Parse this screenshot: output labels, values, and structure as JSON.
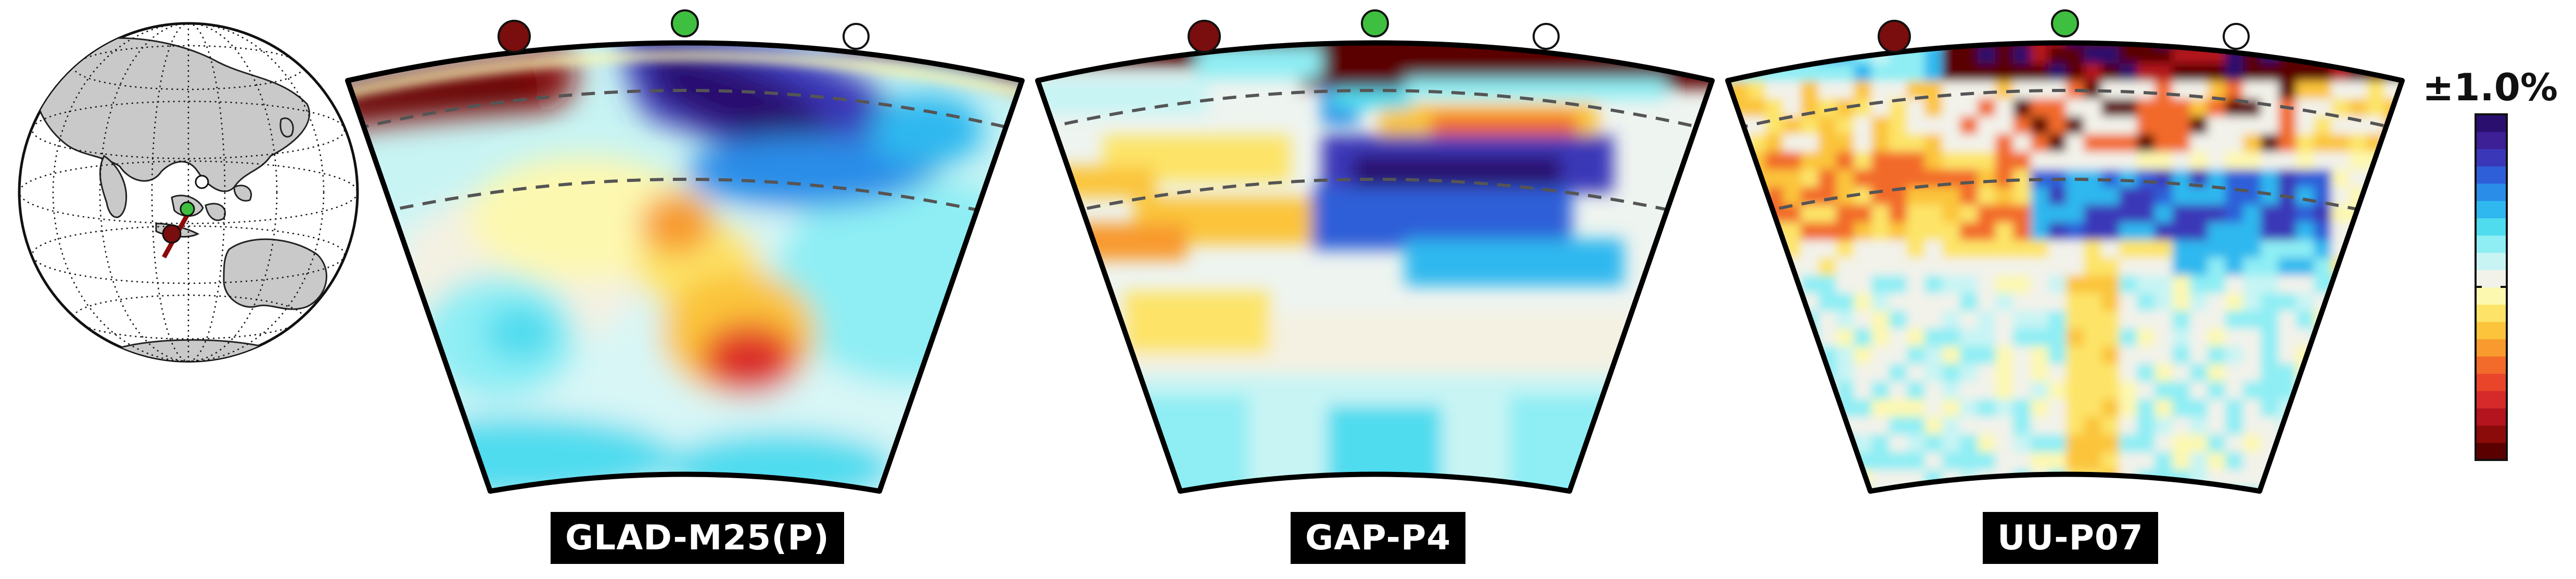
{
  "globe": {
    "point_colors": [
      "#7a0d0d",
      "#3fbf3f",
      "#ffffff"
    ]
  },
  "panels": [
    {
      "label": "GLAD-M25(P)"
    },
    {
      "label": "GAP-P4"
    },
    {
      "label": "UU-P07"
    }
  ],
  "markers": {
    "colors": [
      "#7a0d0d",
      "#3fbf3f",
      "#ffffff"
    ]
  },
  "colorbar": {
    "label": "±1.0%",
    "colors": [
      "#5a0000",
      "#8b0a0a",
      "#b3141e",
      "#d62a2a",
      "#e8452a",
      "#f26b2a",
      "#f89a2e",
      "#fbc43a",
      "#fde468",
      "#fdf8b0",
      "#f2f2ea",
      "#c8f4f4",
      "#8eeef4",
      "#4fdcef",
      "#2fb8ef",
      "#2a8de8",
      "#2f5fd8",
      "#3a38b8",
      "#3d1f96",
      "#2a0f6e"
    ]
  }
}
